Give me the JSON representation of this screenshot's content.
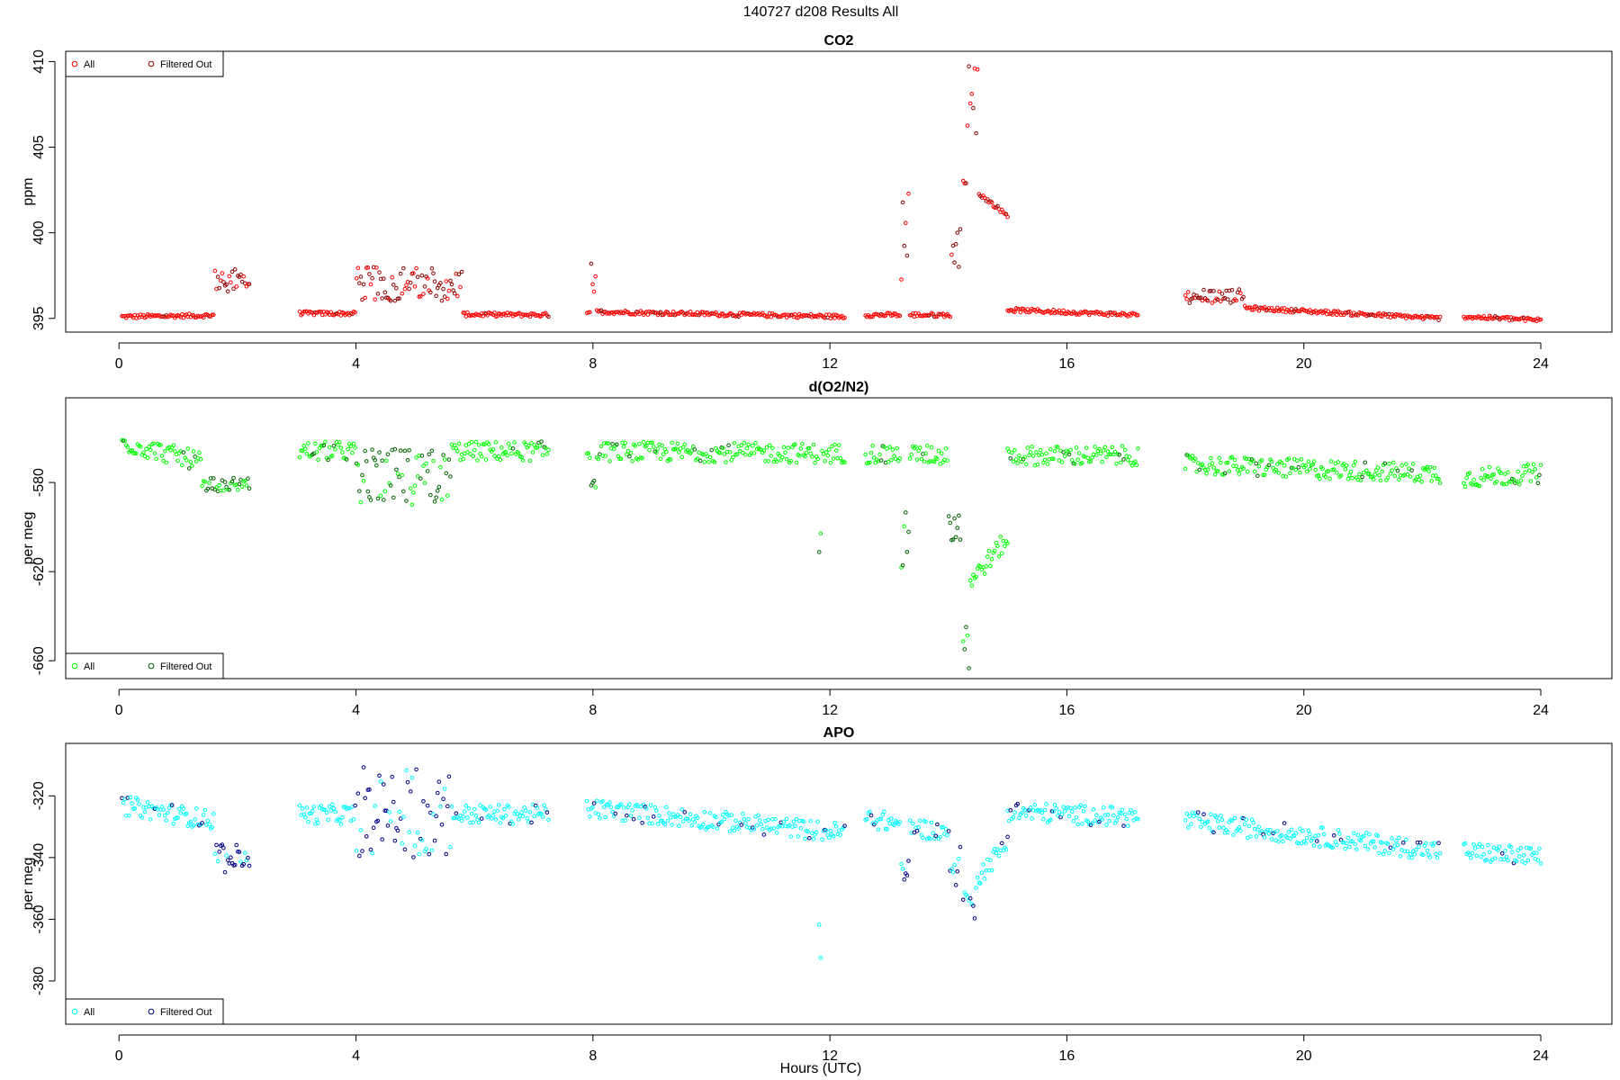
{
  "figure": {
    "title": "140727   d208   Results All",
    "xlabel": "Hours (UTC)"
  },
  "chart_data": [
    {
      "type": "scatter",
      "title": "CO2",
      "ylabel": "ppm",
      "xlim": [
        -0.9,
        25.2
      ],
      "ylim": [
        394.2,
        410.6
      ],
      "xticks": [
        0,
        4,
        8,
        12,
        16,
        20,
        24
      ],
      "yticks": [
        395,
        400,
        405,
        410
      ],
      "legend_position": "top-left",
      "series": [
        {
          "name": "All",
          "color": "#ff0000",
          "marker": "open-circle"
        },
        {
          "name": "Filtered Out",
          "color": "#8b0000",
          "marker": "open-circle"
        }
      ],
      "segments": [
        {
          "x": [
            0.05,
            2.2
          ],
          "baseline": [
            395.1,
            395.2
          ],
          "features": [
            [
              1.6,
              2.2,
              396.4,
              397.9
            ]
          ]
        },
        {
          "x": [
            3.05,
            7.25
          ],
          "baseline": [
            395.3,
            395.2
          ],
          "features": [
            [
              4.0,
              5.8,
              396.0,
              398.0
            ]
          ]
        },
        {
          "x": [
            7.9,
            12.25
          ],
          "baseline": [
            395.4,
            395.1
          ],
          "features": [
            [
              7.95,
              8.05,
              396.5,
              398.8
            ]
          ]
        },
        {
          "x": [
            12.6,
            14.2
          ],
          "baseline": [
            395.2,
            395.2
          ],
          "features": [
            [
              13.2,
              13.35,
              397.0,
              402.5
            ],
            [
              14.05,
              14.25,
              398.0,
              400.5
            ]
          ]
        },
        {
          "x": [
            14.25,
            15.0
          ],
          "baseline": [
            403.0,
            401.0
          ],
          "features": [
            [
              14.3,
              14.5,
              405.0,
              410.0
            ]
          ]
        },
        {
          "x": [
            15.0,
            17.2
          ],
          "baseline": [
            395.5,
            395.2
          ],
          "features": []
        },
        {
          "x": [
            18.0,
            22.3
          ],
          "baseline": [
            395.8,
            395.0
          ],
          "features": [
            [
              18.0,
              19.0,
              395.9,
              396.7
            ]
          ]
        },
        {
          "x": [
            22.7,
            24.0
          ],
          "baseline": [
            395.1,
            394.9
          ],
          "features": []
        }
      ]
    },
    {
      "type": "scatter",
      "title": "d(O2/N2)",
      "ylabel": "per meg",
      "xlim": [
        -0.9,
        25.2
      ],
      "ylim": [
        -668,
        -542
      ],
      "xticks": [
        0,
        4,
        8,
        12,
        16,
        20,
        24
      ],
      "yticks": [
        -580,
        -620,
        -660
      ],
      "legend_position": "bottom-left",
      "series": [
        {
          "name": "All",
          "color": "#00ff00",
          "marker": "open-circle"
        },
        {
          "name": "Filtered Out",
          "color": "#006400",
          "marker": "open-circle"
        }
      ],
      "segments": [
        {
          "x": [
            0.05,
            2.2
          ],
          "baseline": [
            -562,
            -576
          ],
          "features": [
            [
              1.4,
              2.2,
              -584,
              -578
            ]
          ]
        },
        {
          "x": [
            3.05,
            7.25
          ],
          "baseline": [
            -566,
            -566
          ],
          "features": [
            [
              4.0,
              5.6,
              -590,
              -565
            ]
          ]
        },
        {
          "x": [
            7.9,
            12.25
          ],
          "baseline": [
            -566,
            -567
          ],
          "features": [
            [
              7.95,
              8.05,
              -585,
              -575
            ],
            [
              11.8,
              11.85,
              -630,
              -590
            ]
          ]
        },
        {
          "x": [
            12.6,
            14.2
          ],
          "baseline": [
            -567,
            -568
          ],
          "features": [
            [
              13.2,
              13.35,
              -625,
              -585
            ],
            [
              14.0,
              14.25,
              -610,
              -585
            ]
          ]
        },
        {
          "x": [
            14.25,
            15.0
          ],
          "baseline": [
            -628,
            -605
          ],
          "features": [
            [
              14.2,
              14.35,
              -668,
              -640
            ]
          ]
        },
        {
          "x": [
            15.0,
            17.2
          ],
          "baseline": [
            -568,
            -568
          ],
          "features": []
        },
        {
          "x": [
            18.0,
            22.3
          ],
          "baseline": [
            -572,
            -576
          ],
          "features": []
        },
        {
          "x": [
            22.7,
            24.0
          ],
          "baseline": [
            -578,
            -576
          ],
          "features": []
        }
      ]
    },
    {
      "type": "scatter",
      "title": "APO",
      "ylabel": "per meg",
      "xlim": [
        -0.9,
        25.2
      ],
      "ylim": [
        -394,
        -303
      ],
      "xticks": [
        0,
        4,
        8,
        12,
        16,
        20,
        24
      ],
      "yticks": [
        -320,
        -340,
        -360,
        -380
      ],
      "legend_position": "bottom-left",
      "series": [
        {
          "name": "All",
          "color": "#00ffff",
          "marker": "open-circle"
        },
        {
          "name": "Filtered Out",
          "color": "#00008b",
          "marker": "open-circle"
        }
      ],
      "segments": [
        {
          "x": [
            0.05,
            2.2
          ],
          "baseline": [
            -323,
            -330
          ],
          "features": [
            [
              1.6,
              2.2,
              -345,
              -335
            ]
          ]
        },
        {
          "x": [
            3.05,
            7.25
          ],
          "baseline": [
            -326,
            -326
          ],
          "features": [
            [
              4.0,
              5.6,
              -340,
              -310
            ]
          ]
        },
        {
          "x": [
            7.9,
            12.25
          ],
          "baseline": [
            -324,
            -332
          ],
          "features": [
            [
              11.8,
              11.85,
              -393,
              -353
            ]
          ]
        },
        {
          "x": [
            12.6,
            14.2
          ],
          "baseline": [
            -327,
            -333
          ],
          "features": [
            [
              13.2,
              13.35,
              -348,
              -340
            ],
            [
              14.0,
              14.25,
              -350,
              -330
            ]
          ]
        },
        {
          "x": [
            14.25,
            15.0
          ],
          "baseline": [
            -352,
            -335
          ],
          "features": [
            [
              14.3,
              14.45,
              -360,
              -350
            ]
          ]
        },
        {
          "x": [
            15.0,
            17.2
          ],
          "baseline": [
            -325,
            -327
          ],
          "features": []
        },
        {
          "x": [
            18.0,
            22.3
          ],
          "baseline": [
            -328,
            -338
          ],
          "features": []
        },
        {
          "x": [
            22.7,
            24.0
          ],
          "baseline": [
            -338,
            -340
          ],
          "features": []
        }
      ]
    }
  ]
}
